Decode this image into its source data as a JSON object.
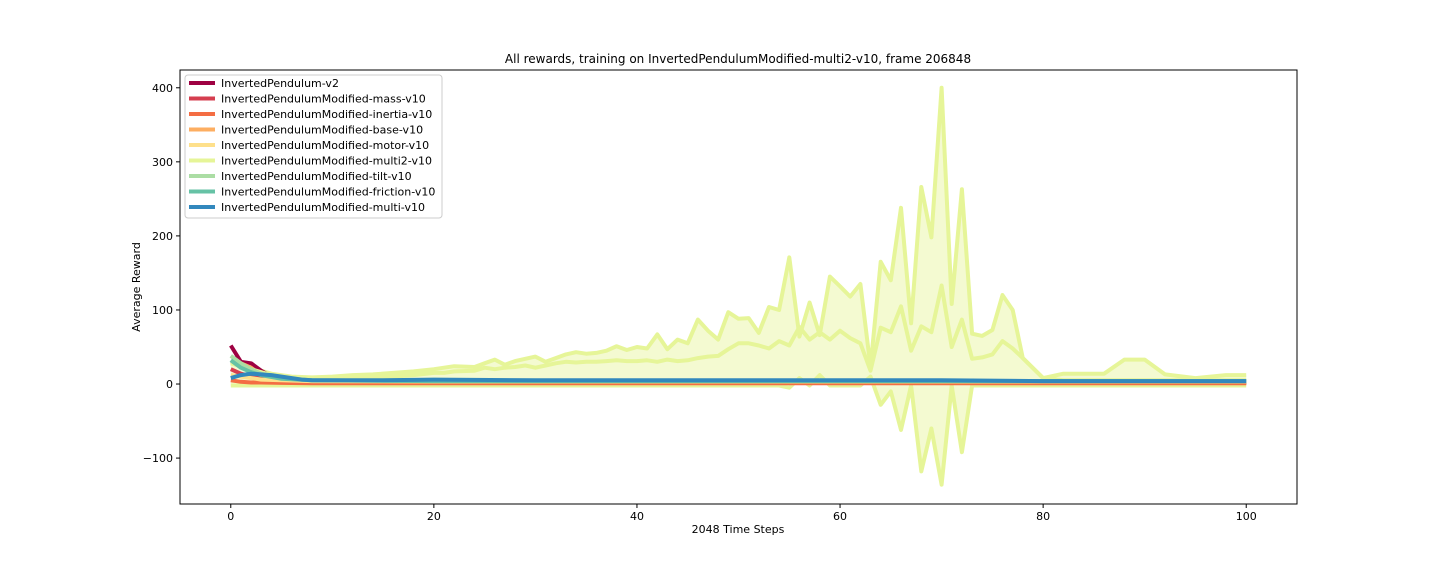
{
  "chart_data": {
    "type": "line",
    "title": "All rewards, training on InvertedPendulumModified-multi2-v10, frame 206848",
    "xlabel": "2048 Time Steps",
    "ylabel": "Average Reward",
    "xlim": [
      -5,
      105
    ],
    "ylim": [
      -162,
      424
    ],
    "xticks": [
      0,
      20,
      40,
      60,
      80,
      100
    ],
    "xtick_labels": [
      "0",
      "20",
      "40",
      "60",
      "80",
      "100"
    ],
    "yticks": [
      -100,
      0,
      100,
      200,
      300,
      400
    ],
    "ytick_labels": [
      "−100",
      "0",
      "100",
      "200",
      "300",
      "400"
    ],
    "grid": false,
    "legend_position": "top-left",
    "series": [
      {
        "name": "InvertedPendulum-v2",
        "color": "#9e0142",
        "x": [
          0,
          1,
          2,
          3,
          4,
          5,
          6,
          7,
          8,
          10,
          20,
          40,
          60,
          80,
          100
        ],
        "y": [
          52,
          30,
          28,
          18,
          10,
          7,
          5,
          4,
          3,
          3,
          3,
          3,
          3,
          3,
          3
        ]
      },
      {
        "name": "InvertedPendulumModified-mass-v10",
        "color": "#d53e4f",
        "x": [
          0,
          1,
          2,
          3,
          5,
          8,
          20,
          40,
          60,
          80,
          100
        ],
        "y": [
          20,
          14,
          10,
          8,
          5,
          3,
          2,
          1.5,
          1.5,
          1.5,
          1.5
        ]
      },
      {
        "name": "InvertedPendulumModified-inertia-v10",
        "color": "#f46d43",
        "x": [
          0,
          1,
          2,
          3,
          5,
          8,
          20,
          40,
          60,
          80,
          100
        ],
        "y": [
          5,
          3,
          2,
          2,
          1.5,
          1,
          1,
          1,
          1,
          1,
          1
        ]
      },
      {
        "name": "InvertedPendulumModified-base-v10",
        "color": "#fdae61",
        "x": [
          0,
          1,
          2,
          3,
          5,
          8,
          20,
          40,
          60,
          80,
          100
        ],
        "y": [
          30,
          28,
          22,
          12,
          6,
          4,
          3,
          3,
          3,
          3,
          3
        ]
      },
      {
        "name": "InvertedPendulumModified-motor-v10",
        "color": "#fee08b",
        "x": [
          0,
          1,
          2,
          3,
          5,
          8,
          20,
          40,
          60,
          80,
          100
        ],
        "y": [
          12,
          10,
          8,
          6,
          5,
          4,
          4,
          4,
          4,
          4,
          4
        ]
      },
      {
        "name": "InvertedPendulumModified-multi2-v10",
        "color": "#e6f598",
        "x": [
          0,
          2,
          4,
          6,
          8,
          10,
          12,
          14,
          16,
          18,
          20,
          21,
          22,
          24,
          25,
          26,
          27,
          28,
          29,
          30,
          31,
          32,
          33,
          34,
          35,
          36,
          37,
          38,
          39,
          40,
          41,
          42,
          43,
          44,
          45,
          46,
          47,
          48,
          49,
          50,
          51,
          52,
          53,
          54,
          55,
          56,
          57,
          58,
          59,
          60,
          61,
          62,
          63,
          64,
          65,
          66,
          67,
          68,
          69,
          70,
          71,
          72,
          73,
          74,
          75,
          76,
          77,
          78,
          80,
          82,
          84,
          86,
          88,
          90,
          92,
          95,
          98,
          100
        ],
        "y": [
          28,
          20,
          12,
          8,
          7,
          7,
          8,
          9,
          10,
          12,
          15,
          15,
          17,
          18,
          22,
          20,
          22,
          23,
          25,
          22,
          25,
          28,
          30,
          29,
          30,
          30,
          31,
          32,
          31,
          31,
          32,
          30,
          33,
          31,
          32,
          35,
          37,
          38,
          47,
          55,
          55,
          52,
          48,
          58,
          52,
          77,
          60,
          70,
          60,
          72,
          62,
          55,
          18,
          76,
          70,
          105,
          45,
          78,
          70,
          133,
          50,
          87,
          34,
          36,
          40,
          58,
          48,
          35,
          8,
          5,
          5,
          5,
          5,
          5,
          5,
          5,
          5,
          5
        ],
        "upper": [
          30,
          22,
          14,
          10,
          9,
          10,
          12,
          13,
          15,
          17,
          20,
          22,
          24,
          23,
          28,
          33,
          26,
          31,
          34,
          37,
          30,
          35,
          40,
          43,
          41,
          42,
          45,
          51,
          46,
          50,
          48,
          67,
          47,
          60,
          55,
          87,
          72,
          60,
          97,
          88,
          89,
          69,
          104,
          100,
          171,
          64,
          110,
          66,
          145,
          132,
          118,
          135,
          23,
          165,
          140,
          238,
          82,
          266,
          198,
          400,
          108,
          263,
          68,
          65,
          73,
          120,
          100,
          35,
          8,
          14,
          14,
          14,
          33,
          33,
          13,
          8,
          12,
          12
        ],
        "lower": [
          -2,
          -2,
          -2,
          -2,
          -2,
          -2,
          -2,
          -2,
          -2,
          -2,
          -2,
          -2,
          -2,
          -2,
          -2,
          -2,
          -2,
          -2,
          -2,
          -2,
          -2,
          -2,
          -2,
          -2,
          -2,
          -2,
          -2,
          -2,
          -2,
          -2,
          -2,
          -2,
          -2,
          -2,
          -2,
          -2,
          -2,
          -2,
          -2,
          -2,
          -2,
          -2,
          -2,
          -2,
          -5,
          8,
          -2,
          12,
          -2,
          -2,
          -2,
          -2,
          10,
          -28,
          -10,
          -62,
          -2,
          -118,
          -60,
          -136,
          -2,
          -92,
          -2,
          -2,
          -2,
          -2,
          -2,
          -2,
          -2,
          -2,
          -2,
          -2,
          -2,
          -2,
          -2,
          -2,
          -2,
          -2
        ]
      },
      {
        "name": "InvertedPendulumModified-tilt-v10",
        "color": "#abdda4",
        "x": [
          0,
          1,
          2,
          3,
          5,
          8,
          20,
          40,
          60,
          80,
          100
        ],
        "y": [
          38,
          28,
          20,
          14,
          8,
          5,
          4,
          4,
          4,
          4,
          4
        ]
      },
      {
        "name": "InvertedPendulumModified-friction-v10",
        "color": "#66c2a5",
        "x": [
          0,
          1,
          2,
          3,
          5,
          8,
          20,
          40,
          60,
          80,
          100
        ],
        "y": [
          32,
          22,
          16,
          12,
          7,
          5,
          4,
          4,
          4,
          4,
          4
        ]
      },
      {
        "name": "InvertedPendulumModified-multi-v10",
        "color": "#3288bd",
        "x": [
          0,
          1,
          2,
          3,
          4,
          5,
          6,
          7,
          8,
          10,
          15,
          20,
          30,
          40,
          50,
          60,
          70,
          80,
          90,
          100
        ],
        "y": [
          8,
          12,
          14,
          13,
          12,
          10,
          8,
          6,
          5,
          5,
          5,
          6,
          5,
          5,
          5,
          5,
          5,
          4,
          4,
          4
        ]
      }
    ]
  }
}
